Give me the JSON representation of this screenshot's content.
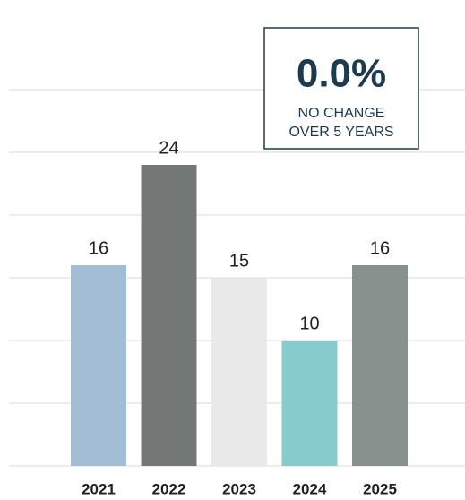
{
  "chart_data": {
    "type": "bar",
    "categories": [
      "2021",
      "2022",
      "2023",
      "2024",
      "2025"
    ],
    "values": [
      16,
      24,
      15,
      10,
      16
    ],
    "colors": [
      "#a3bdd4",
      "#737877",
      "#e8e9e8",
      "#86cccc",
      "#87918e"
    ],
    "ylim": [
      0,
      30
    ],
    "yticks": [
      0,
      5,
      10,
      15,
      20,
      25,
      30
    ],
    "grid": true,
    "annotation": {
      "headline": "0.0%",
      "lines": [
        "NO CHANGE",
        "OVER 5 YEARS"
      ]
    }
  }
}
